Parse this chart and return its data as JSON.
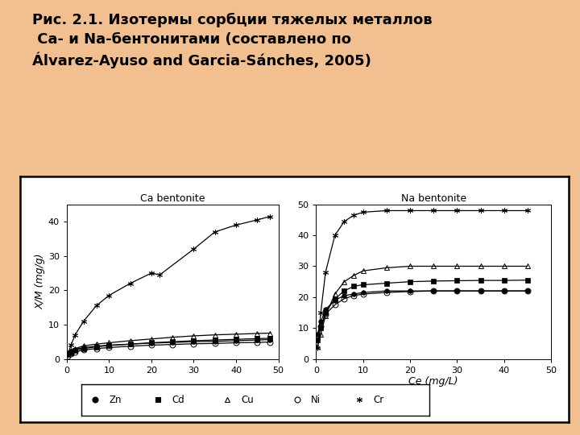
{
  "title_line1": "Рис. 2.1. Изотермы сорбции тяжелых металлов",
  "title_line2": " Ca- и Na-бентонитами (составлено по",
  "title_line3": "Álvarez-Ayuso and Garcia-Sánches, 2005)",
  "bg_color": "#F2C090",
  "panel_bg": "#FFFFFF",
  "xlabel": "Ce (mg/L)",
  "ylabel": "X/M (mg/g)",
  "ca_title": "Ca bentonite",
  "na_title": "Na bentonite",
  "ca_xlim": [
    0,
    50
  ],
  "ca_ylim": [
    0,
    45
  ],
  "na_xlim": [
    0,
    50
  ],
  "na_ylim": [
    0,
    50
  ],
  "ca_xticks": [
    0,
    10,
    20,
    30,
    40,
    50
  ],
  "ca_yticks": [
    0,
    10,
    20,
    30,
    40
  ],
  "na_xticks": [
    0,
    10,
    20,
    30,
    40,
    50
  ],
  "na_yticks": [
    0,
    10,
    20,
    30,
    40,
    50
  ],
  "ca_Zn_x": [
    0.3,
    1,
    2,
    4,
    7,
    10,
    15,
    20,
    25,
    30,
    35,
    40,
    45,
    48
  ],
  "ca_Zn_y": [
    1.5,
    2.2,
    2.8,
    3.3,
    3.7,
    4.0,
    4.3,
    4.6,
    4.8,
    5.0,
    5.1,
    5.3,
    5.5,
    5.6
  ],
  "ca_Cd_x": [
    0.3,
    1,
    2,
    4,
    7,
    10,
    15,
    20,
    25,
    30,
    35,
    40,
    45,
    48
  ],
  "ca_Cd_y": [
    1.2,
    1.8,
    2.5,
    3.0,
    3.5,
    3.9,
    4.3,
    4.7,
    5.0,
    5.3,
    5.5,
    5.7,
    5.9,
    6.0
  ],
  "ca_Cu_x": [
    0.3,
    1,
    2,
    4,
    7,
    10,
    15,
    20,
    25,
    30,
    35,
    40,
    45,
    48
  ],
  "ca_Cu_y": [
    1.8,
    2.5,
    3.0,
    3.8,
    4.3,
    4.7,
    5.3,
    5.8,
    6.3,
    6.7,
    7.0,
    7.2,
    7.4,
    7.5
  ],
  "ca_Ni_x": [
    0.3,
    1,
    2,
    4,
    7,
    10,
    15,
    20,
    25,
    30,
    35,
    40,
    45,
    48
  ],
  "ca_Ni_y": [
    0.8,
    1.5,
    2.0,
    2.6,
    3.0,
    3.3,
    3.7,
    4.0,
    4.2,
    4.4,
    4.5,
    4.7,
    4.8,
    4.9
  ],
  "ca_Cr_x": [
    0.3,
    1,
    2,
    4,
    7,
    10,
    15,
    20,
    22,
    30,
    35,
    40,
    45,
    48
  ],
  "ca_Cr_y": [
    1.5,
    4.0,
    7.0,
    11.0,
    15.5,
    18.5,
    22.0,
    25.0,
    24.5,
    32.0,
    37.0,
    39.0,
    40.5,
    41.5
  ],
  "na_Zn_x": [
    0.3,
    1,
    2,
    4,
    6,
    8,
    10,
    15,
    20,
    25,
    30,
    35,
    40,
    45
  ],
  "na_Zn_y": [
    8.0,
    12.0,
    16.0,
    19.0,
    20.5,
    21.0,
    21.5,
    22.0,
    22.0,
    22.0,
    22.0,
    22.0,
    22.0,
    22.0
  ],
  "na_Cd_x": [
    0.3,
    1,
    2,
    4,
    6,
    8,
    10,
    15,
    20,
    25,
    30,
    35,
    40,
    45
  ],
  "na_Cd_y": [
    6.0,
    10.0,
    15.0,
    19.5,
    22.0,
    23.5,
    24.0,
    24.5,
    25.0,
    25.2,
    25.3,
    25.4,
    25.4,
    25.5
  ],
  "na_Cu_x": [
    0.3,
    1,
    2,
    4,
    6,
    8,
    10,
    15,
    20,
    25,
    30,
    35,
    40,
    45
  ],
  "na_Cu_y": [
    4.0,
    8.0,
    14.0,
    21.0,
    25.0,
    27.0,
    28.5,
    29.5,
    30.0,
    30.0,
    30.0,
    30.0,
    30.0,
    30.0
  ],
  "na_Ni_x": [
    0.3,
    1,
    2,
    4,
    6,
    8,
    10,
    15,
    20,
    25,
    30,
    35,
    40,
    45
  ],
  "na_Ni_y": [
    7.5,
    10.5,
    14.5,
    17.5,
    19.5,
    20.5,
    21.0,
    21.5,
    21.8,
    22.0,
    22.0,
    22.0,
    22.0,
    22.0
  ],
  "na_Cr_x": [
    0.3,
    1,
    2,
    4,
    6,
    8,
    10,
    15,
    20,
    25,
    30,
    35,
    40,
    45
  ],
  "na_Cr_y": [
    3.5,
    15.0,
    28.0,
    40.0,
    44.5,
    46.5,
    47.5,
    48.0,
    48.0,
    48.0,
    48.0,
    48.0,
    48.0,
    48.0
  ],
  "title_fontsize": 13,
  "axis_fontsize": 8,
  "title_label_fontsize": 9
}
